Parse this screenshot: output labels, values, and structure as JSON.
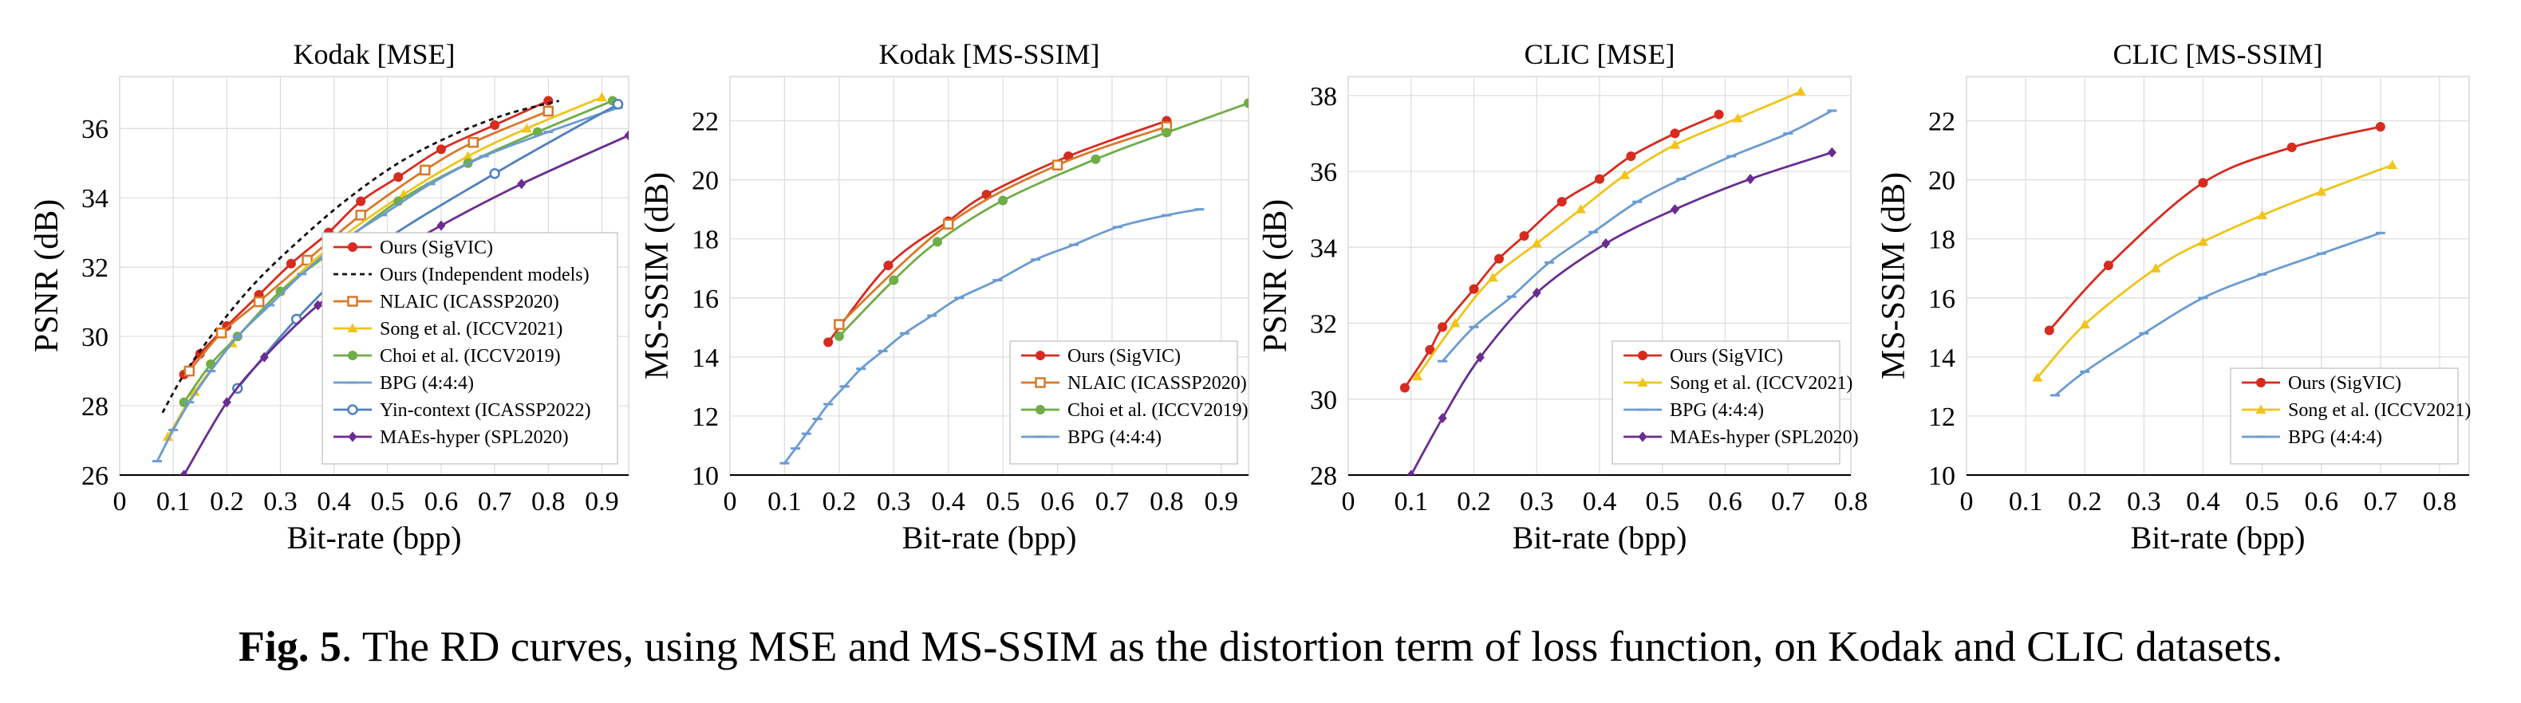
{
  "caption": {
    "label": "Fig. 5",
    "text": ". The RD curves, using MSE and MS-SSIM as the distortion term of loss function, on Kodak and CLIC datasets."
  },
  "series_styles": {
    "Ours (SigVIC)": {
      "color": "#d62b1e",
      "marker": "circle"
    },
    "Ours (Independent models)": {
      "color": "#111111",
      "marker": "none",
      "dashed": true
    },
    "NLAIC (ICASSP2020)": {
      "color": "#d9782a",
      "marker": "square-open"
    },
    "Song et al. (ICCV2021)": {
      "color": "#f0c419",
      "marker": "triangle"
    },
    "Choi et al. (ICCV2019)": {
      "color": "#6fad47",
      "marker": "circle"
    },
    "BPG (4:4:4)": {
      "color": "#6b9bd2",
      "marker": "dash"
    },
    "Yin-context (ICASSP2022)": {
      "color": "#4f81bd",
      "marker": "circle-open"
    },
    "MAEs-hyper (SPL2020)": {
      "color": "#6a2c91",
      "marker": "diamond"
    }
  },
  "chart_data": [
    {
      "type": "line",
      "title": "Kodak [MSE]",
      "xlabel": "Bit-rate (bpp)",
      "ylabel": "PSNR (dB)",
      "xlim": [
        0,
        0.95
      ],
      "ylim": [
        26,
        37.5
      ],
      "xticks": [
        0,
        0.1,
        0.2,
        0.3,
        0.4,
        0.5,
        0.6,
        0.7,
        0.8,
        0.9
      ],
      "xticklabels": [
        "0",
        "0.1",
        "0.2",
        "0.3",
        "0.4",
        "0.5",
        "0.6",
        "0.7",
        "0.8",
        "0.9"
      ],
      "yticks": [
        26,
        28,
        30,
        32,
        34,
        36
      ],
      "yticklabels": [
        "26",
        "28",
        "30",
        "32",
        "34",
        "36"
      ],
      "grid": true,
      "legend_position": "bottom-right",
      "series": [
        {
          "name": "Ours (SigVIC)",
          "x": [
            0.12,
            0.15,
            0.2,
            0.26,
            0.32,
            0.39,
            0.45,
            0.52,
            0.6,
            0.7,
            0.8
          ],
          "y": [
            28.9,
            29.5,
            30.3,
            31.2,
            32.1,
            33.0,
            33.9,
            34.6,
            35.4,
            36.1,
            36.8
          ]
        },
        {
          "name": "Ours (Independent models)",
          "x": [
            0.08,
            0.12,
            0.18,
            0.25,
            0.33,
            0.42,
            0.52,
            0.62,
            0.72,
            0.82
          ],
          "y": [
            27.8,
            28.9,
            30.2,
            31.5,
            32.7,
            33.9,
            35.0,
            35.8,
            36.4,
            36.8
          ]
        },
        {
          "name": "NLAIC (ICASSP2020)",
          "x": [
            0.13,
            0.19,
            0.26,
            0.35,
            0.45,
            0.57,
            0.66,
            0.8
          ],
          "y": [
            29.0,
            30.1,
            31.0,
            32.2,
            33.5,
            34.8,
            35.6,
            36.5
          ]
        },
        {
          "name": "Song et al. (ICCV2021)",
          "x": [
            0.09,
            0.14,
            0.21,
            0.3,
            0.41,
            0.53,
            0.65,
            0.76,
            0.9
          ],
          "y": [
            27.1,
            28.4,
            29.8,
            31.3,
            32.8,
            34.1,
            35.2,
            36.0,
            36.9
          ]
        },
        {
          "name": "Choi et al. (ICCV2019)",
          "x": [
            0.12,
            0.17,
            0.22,
            0.3,
            0.4,
            0.52,
            0.65,
            0.78,
            0.92
          ],
          "y": [
            28.1,
            29.2,
            30.0,
            31.3,
            32.5,
            33.9,
            35.0,
            35.9,
            36.8
          ]
        },
        {
          "name": "BPG (4:4:4)",
          "x": [
            0.07,
            0.1,
            0.13,
            0.17,
            0.22,
            0.28,
            0.34,
            0.41,
            0.49,
            0.58,
            0.68,
            0.8,
            0.93
          ],
          "y": [
            26.4,
            27.3,
            28.1,
            29.0,
            30.0,
            30.9,
            31.8,
            32.7,
            33.5,
            34.4,
            35.2,
            35.9,
            36.6
          ]
        },
        {
          "name": "Yin-context (ICASSP2022)",
          "x": [
            0.22,
            0.33,
            0.47,
            0.7,
            0.93
          ],
          "y": [
            28.5,
            30.5,
            32.5,
            34.7,
            36.7
          ]
        },
        {
          "name": "MAEs-hyper (SPL2020)",
          "x": [
            0.12,
            0.2,
            0.27,
            0.37,
            0.48,
            0.6,
            0.75,
            0.95
          ],
          "y": [
            26.0,
            28.1,
            29.4,
            30.9,
            32.1,
            33.2,
            34.4,
            35.8
          ]
        }
      ]
    },
    {
      "type": "line",
      "title": "Kodak [MS-SSIM]",
      "xlabel": "Bit-rate (bpp)",
      "ylabel": "MS-SSIM (dB)",
      "xlim": [
        0,
        0.95
      ],
      "ylim": [
        10,
        23.5
      ],
      "xticks": [
        0,
        0.1,
        0.2,
        0.3,
        0.4,
        0.5,
        0.6,
        0.7,
        0.8,
        0.9
      ],
      "xticklabels": [
        "0",
        "0.1",
        "0.2",
        "0.3",
        "0.4",
        "0.5",
        "0.6",
        "0.7",
        "0.8",
        "0.9"
      ],
      "yticks": [
        10,
        12,
        14,
        16,
        18,
        20,
        22
      ],
      "yticklabels": [
        "10",
        "12",
        "14",
        "16",
        "18",
        "20",
        "22"
      ],
      "grid": true,
      "legend_position": "bottom-right",
      "series": [
        {
          "name": "Ours (SigVIC)",
          "x": [
            0.18,
            0.29,
            0.4,
            0.47,
            0.62,
            0.8
          ],
          "y": [
            14.5,
            17.1,
            18.6,
            19.5,
            20.8,
            22.0
          ]
        },
        {
          "name": "NLAIC (ICASSP2020)",
          "x": [
            0.2,
            0.4,
            0.6,
            0.8
          ],
          "y": [
            15.1,
            18.5,
            20.5,
            21.8
          ]
        },
        {
          "name": "Choi et al. (ICCV2019)",
          "x": [
            0.2,
            0.3,
            0.38,
            0.5,
            0.67,
            0.8,
            0.95
          ],
          "y": [
            14.7,
            16.6,
            17.9,
            19.3,
            20.7,
            21.6,
            22.6
          ]
        },
        {
          "name": "BPG (4:4:4)",
          "x": [
            0.1,
            0.12,
            0.14,
            0.16,
            0.18,
            0.21,
            0.24,
            0.28,
            0.32,
            0.37,
            0.42,
            0.49,
            0.56,
            0.63,
            0.71,
            0.8,
            0.86
          ],
          "y": [
            10.4,
            10.9,
            11.4,
            11.9,
            12.4,
            13.0,
            13.6,
            14.2,
            14.8,
            15.4,
            16.0,
            16.6,
            17.3,
            17.8,
            18.4,
            18.8,
            19.0
          ]
        }
      ]
    },
    {
      "type": "line",
      "title": "CLIC [MSE]",
      "xlabel": "Bit-rate (bpp)",
      "ylabel": "PSNR (dB)",
      "xlim": [
        0,
        0.8
      ],
      "ylim": [
        28,
        38.5
      ],
      "xticks": [
        0,
        0.1,
        0.2,
        0.3,
        0.4,
        0.5,
        0.6,
        0.7,
        0.8
      ],
      "xticklabels": [
        "0",
        "0.1",
        "0.2",
        "0.3",
        "0.4",
        "0.5",
        "0.6",
        "0.7",
        "0.8"
      ],
      "yticks": [
        28,
        30,
        32,
        34,
        36,
        38
      ],
      "yticklabels": [
        "28",
        "30",
        "32",
        "34",
        "36",
        "38"
      ],
      "grid": true,
      "legend_position": "bottom-right",
      "series": [
        {
          "name": "Ours (SigVIC)",
          "x": [
            0.09,
            0.13,
            0.15,
            0.2,
            0.24,
            0.28,
            0.34,
            0.4,
            0.45,
            0.52,
            0.59
          ],
          "y": [
            30.3,
            31.3,
            31.9,
            32.9,
            33.7,
            34.3,
            35.2,
            35.8,
            36.4,
            37.0,
            37.5
          ]
        },
        {
          "name": "Song et al. (ICCV2021)",
          "x": [
            0.11,
            0.17,
            0.23,
            0.3,
            0.37,
            0.44,
            0.52,
            0.62,
            0.72
          ],
          "y": [
            30.6,
            32.0,
            33.2,
            34.1,
            35.0,
            35.9,
            36.7,
            37.4,
            38.1
          ]
        },
        {
          "name": "BPG (4:4:4)",
          "x": [
            0.15,
            0.2,
            0.26,
            0.32,
            0.39,
            0.46,
            0.53,
            0.61,
            0.7,
            0.77
          ],
          "y": [
            31.0,
            31.9,
            32.7,
            33.6,
            34.4,
            35.2,
            35.8,
            36.4,
            37.0,
            37.6
          ]
        },
        {
          "name": "MAEs-hyper (SPL2020)",
          "x": [
            0.1,
            0.15,
            0.21,
            0.3,
            0.41,
            0.52,
            0.64,
            0.77
          ],
          "y": [
            28.0,
            29.5,
            31.1,
            32.8,
            34.1,
            35.0,
            35.8,
            36.5
          ]
        }
      ]
    },
    {
      "type": "line",
      "title": "CLIC [MS-SSIM]",
      "xlabel": "Bit-rate (bpp)",
      "ylabel": "MS-SSIM (dB)",
      "xlim": [
        0,
        0.85
      ],
      "ylim": [
        10,
        23.5
      ],
      "xticks": [
        0,
        0.1,
        0.2,
        0.3,
        0.4,
        0.5,
        0.6,
        0.7,
        0.8
      ],
      "xticklabels": [
        "0",
        "0.1",
        "0.2",
        "0.3",
        "0.4",
        "0.5",
        "0.6",
        "0.7",
        "0.8"
      ],
      "yticks": [
        10,
        12,
        14,
        16,
        18,
        20,
        22
      ],
      "yticklabels": [
        "10",
        "12",
        "14",
        "16",
        "18",
        "20",
        "22"
      ],
      "grid": true,
      "legend_position": "bottom-right",
      "series": [
        {
          "name": "Ours (SigVIC)",
          "x": [
            0.14,
            0.24,
            0.4,
            0.55,
            0.7
          ],
          "y": [
            14.9,
            17.1,
            19.9,
            21.1,
            21.8
          ]
        },
        {
          "name": "Song et al. (ICCV2021)",
          "x": [
            0.12,
            0.2,
            0.32,
            0.4,
            0.5,
            0.6,
            0.72
          ],
          "y": [
            13.3,
            15.1,
            17.0,
            17.9,
            18.8,
            19.6,
            20.5
          ]
        },
        {
          "name": "BPG (4:4:4)",
          "x": [
            0.15,
            0.2,
            0.3,
            0.4,
            0.5,
            0.6,
            0.7
          ],
          "y": [
            12.7,
            13.5,
            14.8,
            16.0,
            16.8,
            17.5,
            18.2
          ]
        }
      ]
    }
  ]
}
